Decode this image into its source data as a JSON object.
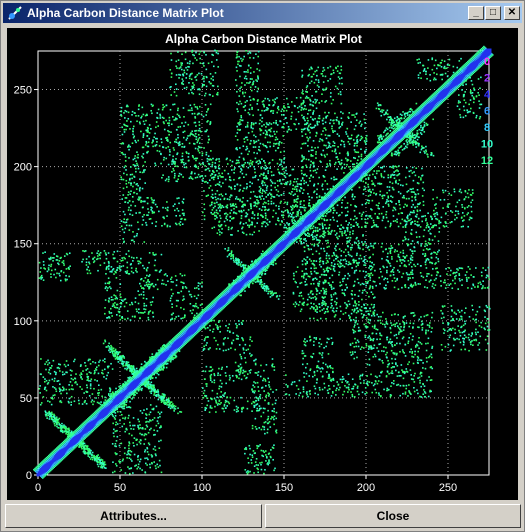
{
  "window": {
    "title": "Alpha Carbon Distance Matrix Plot"
  },
  "titlebar_buttons": {
    "minimize": "_",
    "maximize": "□",
    "close": "✕"
  },
  "chart_data": {
    "type": "heatmap",
    "title": "Alpha Carbon Distance Matrix Plot",
    "xlabel": "",
    "ylabel": "",
    "xlim": [
      0,
      275
    ],
    "ylim": [
      0,
      275
    ],
    "x_ticks": [
      0,
      50,
      100,
      150,
      200,
      250
    ],
    "y_ticks": [
      0,
      50,
      100,
      150,
      200,
      250
    ],
    "grid": true,
    "legend_placement": "right",
    "legend": [
      {
        "label": "0",
        "color": "#ff33ff"
      },
      {
        "label": "2",
        "color": "#9933ff"
      },
      {
        "label": "4",
        "color": "#3333ff"
      },
      {
        "label": "6",
        "color": "#3399ff"
      },
      {
        "label": "8",
        "color": "#33ccff"
      },
      {
        "label": "10",
        "color": "#33ffcc"
      },
      {
        "label": "12",
        "color": "#33ff99"
      }
    ],
    "diagonal": {
      "from": 0,
      "to": 275
    },
    "contact_regions": [
      {
        "x": [
          5,
          40
        ],
        "y": [
          5,
          40
        ],
        "shape": "cross"
      },
      {
        "x": [
          45,
          85
        ],
        "y": [
          40,
          80
        ],
        "shape": "cross"
      },
      {
        "x": [
          115,
          140
        ],
        "y": [
          120,
          145
        ],
        "shape": "cross"
      },
      {
        "x": [
          215,
          240
        ],
        "y": [
          205,
          230
        ],
        "shape": "cross"
      },
      {
        "x": [
          0,
          45
        ],
        "y": [
          45,
          75
        ]
      },
      {
        "x": [
          0,
          20
        ],
        "y": [
          125,
          145
        ]
      },
      {
        "x": [
          25,
          75
        ],
        "y": [
          130,
          145
        ]
      },
      {
        "x": [
          40,
          60
        ],
        "y": [
          100,
          115
        ]
      },
      {
        "x": [
          60,
          90
        ],
        "y": [
          120,
          130
        ]
      },
      {
        "x": [
          65,
          90
        ],
        "y": [
          160,
          180
        ]
      },
      {
        "x": [
          75,
          110
        ],
        "y": [
          190,
          205
        ]
      },
      {
        "x": [
          100,
          125
        ],
        "y": [
          60,
          70
        ]
      },
      {
        "x": [
          110,
          135
        ],
        "y": [
          40,
          50
        ]
      },
      {
        "x": [
          120,
          170
        ],
        "y": [
          220,
          245
        ]
      },
      {
        "x": [
          150,
          180
        ],
        "y": [
          170,
          190
        ]
      },
      {
        "x": [
          155,
          180
        ],
        "y": [
          105,
          135
        ]
      },
      {
        "x": [
          160,
          200
        ],
        "y": [
          135,
          160
        ]
      },
      {
        "x": [
          160,
          185
        ],
        "y": [
          240,
          265
        ]
      },
      {
        "x": [
          190,
          235
        ],
        "y": [
          160,
          200
        ]
      },
      {
        "x": [
          200,
          240
        ],
        "y": [
          50,
          105
        ]
      },
      {
        "x": [
          245,
          275
        ],
        "y": [
          80,
          110
        ]
      },
      {
        "x": [
          245,
          275
        ],
        "y": [
          120,
          135
        ]
      },
      {
        "x": [
          150,
          200
        ],
        "y": [
          50,
          65
        ]
      },
      {
        "x": [
          100,
          140
        ],
        "y": [
          165,
          205
        ]
      },
      {
        "x": [
          100,
          125
        ],
        "y": [
          80,
          100
        ]
      },
      {
        "x": [
          150,
          175
        ],
        "y": [
          150,
          170
        ]
      },
      {
        "x": [
          200,
          220
        ],
        "y": [
          120,
          150
        ]
      },
      {
        "x": [
          230,
          260
        ],
        "y": [
          255,
          270
        ]
      }
    ]
  },
  "buttons": {
    "attributes": "Attributes...",
    "close": "Close"
  }
}
